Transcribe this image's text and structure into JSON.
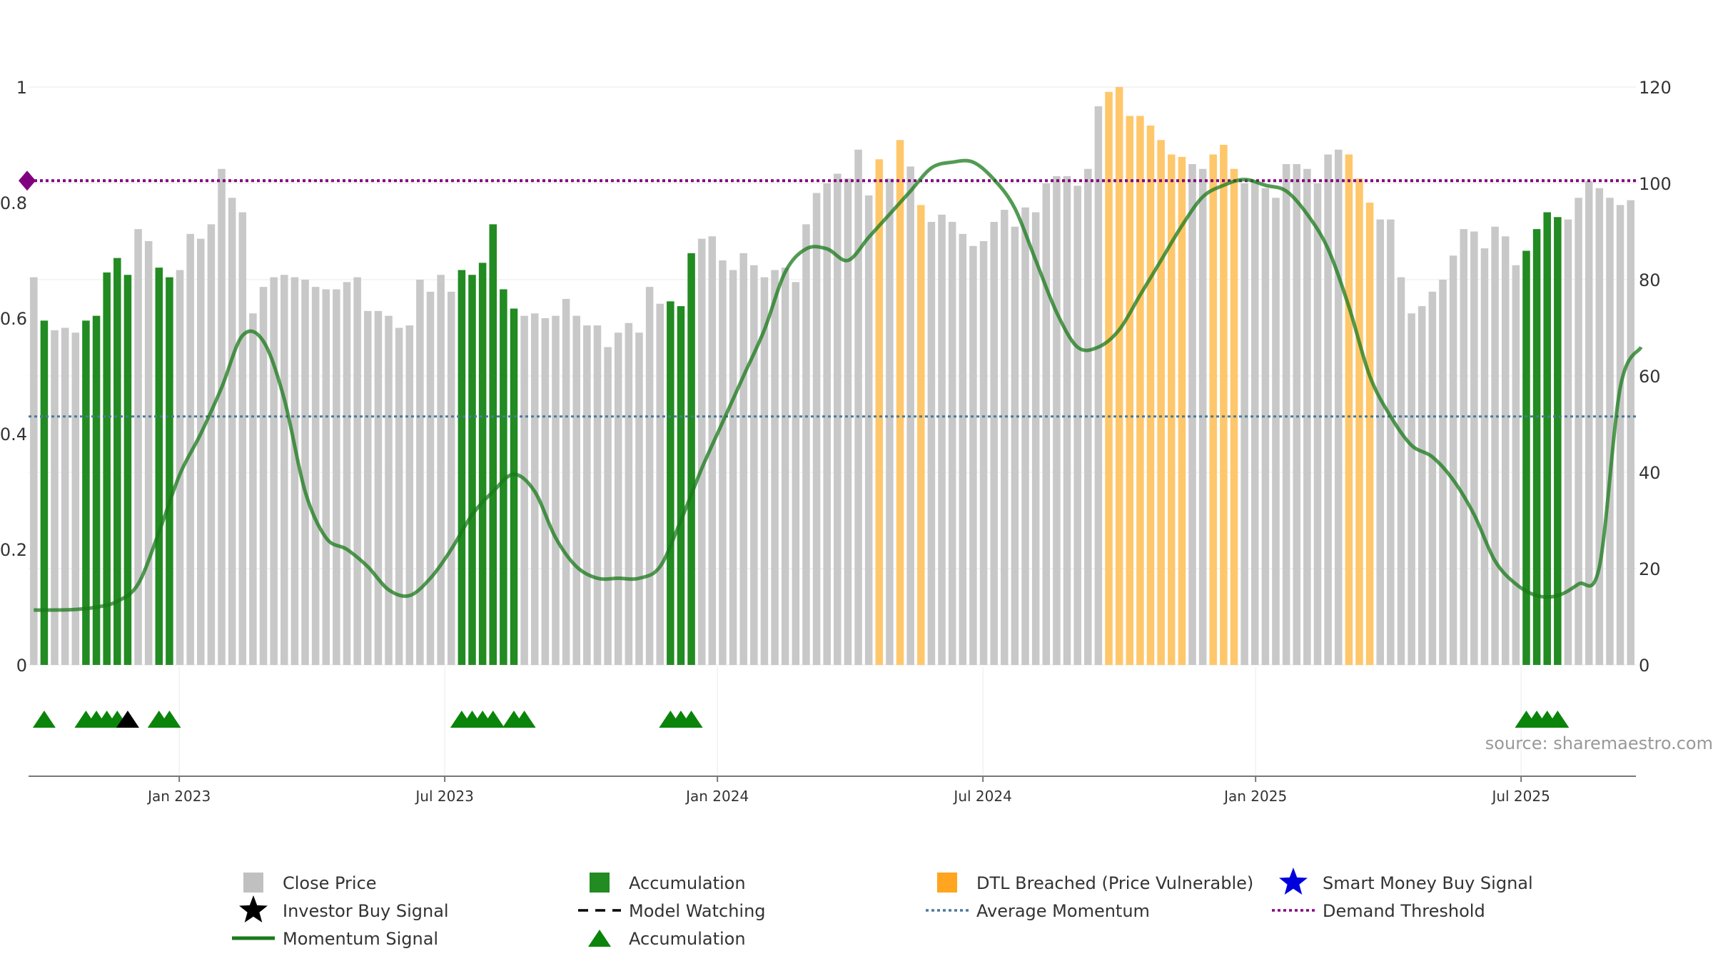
{
  "chart_data": {
    "type": "bar",
    "source_label": "source: sharemaestro.com",
    "left_axis": {
      "range": [
        0,
        1
      ],
      "ticks": [
        "0",
        "0.2",
        "0.4",
        "0.6",
        "0.8",
        "1"
      ]
    },
    "right_axis": {
      "range": [
        0,
        120
      ],
      "ticks": [
        "0",
        "20",
        "40",
        "60",
        "80",
        "100",
        "120"
      ]
    },
    "x_ticks": [
      "Jan 2023",
      "Jul 2023",
      "Jan 2024",
      "Jul 2024",
      "Jan 2025",
      "Jul 2025"
    ],
    "grid": true,
    "legend_position": "bottom",
    "average_momentum": 0.43,
    "demand_threshold": 0.838,
    "colors": {
      "close_price": "#c8c8c8",
      "accumulation": "#228b22",
      "dtl_breached": "#ffc76b",
      "momentum": "#1a7a1a",
      "average_momentum": "#4a7a9a",
      "demand_threshold": "#800080",
      "marker_accumulation": "#0a840a",
      "marker_investor": "#000000",
      "smart_money": "#0000dd"
    },
    "close_price": [
      80.5,
      71.5,
      69.5,
      70,
      69,
      71.5,
      72.5,
      81.5,
      84.5,
      81,
      90.5,
      88,
      82.5,
      80.5,
      82,
      89.5,
      88.5,
      91.5,
      103,
      97,
      94,
      73,
      78.5,
      80.5,
      81,
      80.5,
      80,
      78.5,
      78,
      78,
      79.5,
      80.5,
      73.5,
      73.5,
      72.5,
      70,
      70.5,
      80,
      77.5,
      81,
      77.5,
      82,
      81,
      83.5,
      91.5,
      78,
      74,
      72.5,
      73,
      72,
      72.5,
      76,
      72.5,
      70.5,
      70.5,
      66,
      69,
      71,
      69,
      78.5,
      75,
      75.5,
      74.5,
      85.5,
      88.5,
      89,
      84,
      82,
      85.5,
      83,
      80.5,
      82,
      82.5,
      79.5,
      91.5,
      98,
      100,
      102,
      101,
      107,
      97.5,
      105,
      101,
      109,
      103.5,
      95.5,
      92,
      93.5,
      92,
      89.5,
      87,
      88,
      92,
      94.5,
      91,
      95,
      94,
      100,
      101.5,
      101.5,
      99.5,
      103,
      116,
      119,
      120,
      114,
      114,
      112,
      109,
      106,
      105.5,
      104,
      103,
      106,
      108,
      103,
      100,
      100.5,
      99,
      97,
      104,
      104,
      103,
      100,
      106,
      107,
      106,
      101,
      96,
      92.5,
      92.5,
      80.5,
      73,
      74.5,
      77.5,
      80,
      85,
      90.5,
      90,
      86.5,
      91,
      89,
      83,
      86,
      90.5,
      94,
      93,
      92.5,
      97,
      100.5,
      99,
      97,
      95.5,
      96.5
    ],
    "bar_status": [
      "c",
      "a",
      "c",
      "c",
      "c",
      "a",
      "a",
      "a",
      "a",
      "a",
      "c",
      "c",
      "a",
      "a",
      "c",
      "c",
      "c",
      "c",
      "c",
      "c",
      "c",
      "c",
      "c",
      "c",
      "c",
      "c",
      "c",
      "c",
      "c",
      "c",
      "c",
      "c",
      "c",
      "c",
      "c",
      "c",
      "c",
      "c",
      "c",
      "c",
      "a",
      "a",
      "a",
      "a",
      "c",
      "a",
      "a",
      "c",
      "c",
      "c",
      "c",
      "c",
      "c",
      "c",
      "c",
      "c",
      "c",
      "c",
      "c",
      "c",
      "c",
      "c",
      "c",
      "a",
      "a",
      "a",
      "c",
      "c",
      "c",
      "c",
      "c",
      "c",
      "c",
      "c",
      "c",
      "c",
      "c",
      "c",
      "c",
      "c",
      "c",
      "c",
      "c",
      "c",
      "c",
      "c",
      "c",
      "c",
      "c",
      "c",
      "c",
      "c",
      "c",
      "c",
      "c",
      "c",
      "c",
      "c",
      "c",
      "c",
      "c",
      "c",
      "c",
      "c",
      "c",
      "c",
      "c",
      "c",
      "c",
      "c",
      "c",
      "c",
      "c",
      "c",
      "c",
      "c",
      "c",
      "c",
      "c",
      "c",
      "c",
      "c",
      "c",
      "c",
      "c",
      "c",
      "c",
      "c",
      "c",
      "c",
      "c",
      "c",
      "c",
      "c",
      "c",
      "c",
      "c",
      "c",
      "c",
      "c",
      "c",
      "c",
      "c",
      "c",
      "c",
      "c",
      "c",
      "c",
      "c",
      "c",
      "c",
      "c",
      "c",
      "c",
      "c",
      "c",
      "c"
    ],
    "dtl_bars": [
      81,
      83,
      85,
      103,
      104,
      105,
      106,
      107,
      108,
      109,
      110,
      113,
      114,
      115,
      126,
      127,
      128
    ],
    "accumulation_bars": [
      1,
      5,
      6,
      7,
      8,
      9,
      12,
      13,
      41,
      42,
      43,
      44,
      45,
      46,
      61,
      62,
      63,
      143,
      144,
      145,
      146
    ],
    "momentum_signal": {
      "x": [
        0,
        2,
        4,
        6,
        8,
        10,
        12,
        14,
        16,
        18,
        20,
        22,
        24,
        26,
        28,
        30,
        32,
        34,
        36,
        38,
        40,
        42,
        44,
        46,
        48,
        50,
        52,
        54,
        56,
        58,
        60,
        62,
        64,
        66,
        68,
        70,
        72,
        74,
        76,
        78,
        80,
        82,
        84,
        86,
        88,
        90,
        92,
        94,
        96,
        98,
        100,
        102,
        104,
        106,
        108,
        110,
        112,
        114,
        116,
        118,
        120,
        122,
        124,
        126,
        128,
        130,
        132,
        134,
        136,
        138,
        140,
        142,
        144,
        146,
        148,
        150,
        152,
        154
      ],
      "y": [
        0.095,
        0.095,
        0.096,
        0.1,
        0.11,
        0.14,
        0.23,
        0.33,
        0.4,
        0.48,
        0.57,
        0.56,
        0.46,
        0.3,
        0.22,
        0.2,
        0.17,
        0.13,
        0.12,
        0.15,
        0.2,
        0.26,
        0.3,
        0.33,
        0.3,
        0.22,
        0.17,
        0.15,
        0.15,
        0.15,
        0.17,
        0.25,
        0.34,
        0.42,
        0.5,
        0.58,
        0.68,
        0.72,
        0.72,
        0.7,
        0.74,
        0.78,
        0.82,
        0.86,
        0.87,
        0.87,
        0.84,
        0.79,
        0.7,
        0.61,
        0.55,
        0.55,
        0.58,
        0.64,
        0.7,
        0.76,
        0.81,
        0.83,
        0.84,
        0.83,
        0.82,
        0.78,
        0.72,
        0.62,
        0.5,
        0.43,
        0.38,
        0.36,
        0.32,
        0.26,
        0.18,
        0.14,
        0.12,
        0.12,
        0.14,
        0.17,
        0.48,
        0.55
      ]
    },
    "signals_accumulation": [
      1,
      5,
      6,
      7,
      8,
      12,
      13,
      41,
      42,
      43,
      44,
      46,
      47,
      61,
      62,
      63,
      143,
      144,
      145,
      146
    ],
    "signals_investor": [
      9
    ],
    "legend": [
      {
        "name": "Close Price",
        "symbol": "square",
        "color": "#c0c0c0"
      },
      {
        "name": "Accumulation",
        "symbol": "square",
        "color": "#228b22"
      },
      {
        "name": "DTL Breached (Price Vulnerable)",
        "symbol": "square",
        "color": "#ffa520"
      },
      {
        "name": "Smart Money Buy Signal",
        "symbol": "star",
        "color": "#0000dd"
      },
      {
        "name": "Investor Buy Signal",
        "symbol": "star",
        "color": "#000000"
      },
      {
        "name": "Model Watching",
        "symbol": "dash",
        "color": "#000000"
      },
      {
        "name": "Average Momentum",
        "symbol": "dot",
        "color": "#4a7a9a"
      },
      {
        "name": "Demand Threshold",
        "symbol": "dot",
        "color": "#800080"
      },
      {
        "name": "Momentum Signal",
        "symbol": "line",
        "color": "#1a7a1a"
      },
      {
        "name": "Accumulation",
        "symbol": "triangle",
        "color": "#0a840a"
      }
    ]
  }
}
